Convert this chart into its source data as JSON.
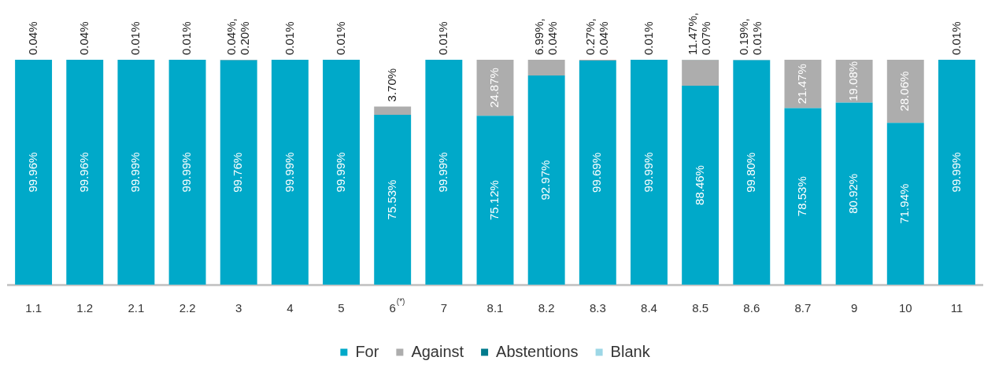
{
  "chart_data": {
    "type": "bar",
    "stacked": true,
    "categories": [
      "1.1",
      "1.2",
      "2.1",
      "2.2",
      "3",
      "4",
      "5",
      "6$^{(*)}$",
      "7",
      "8.1",
      "8.2",
      "8.3",
      "8.4",
      "8.5",
      "8.6",
      "8.7",
      "9",
      "10",
      "11"
    ],
    "series": [
      {
        "name": "For",
        "color": "#00a9c9",
        "values": [
          99.96,
          99.96,
          99.99,
          99.99,
          99.76,
          99.99,
          99.99,
          75.53,
          99.99,
          75.12,
          92.97,
          99.69,
          99.99,
          88.46,
          99.8,
          78.53,
          80.92,
          71.94,
          99.99
        ],
        "value_labels": [
          "99.96%",
          "99.96%",
          "99.99%",
          "99.99%",
          "99.76%",
          "99.99%",
          "99.99%",
          "75.53%",
          "99.99%",
          "75.12%",
          "92.97%",
          "99.69%",
          "99.99%",
          "88.46%",
          "99.80%",
          "78.53%",
          "80.92%",
          "71.94%",
          "99.99%"
        ]
      },
      {
        "name": "Against",
        "color": "#adadad",
        "values": [
          0.04,
          0.04,
          0.01,
          0.01,
          0.04,
          0.01,
          0.01,
          3.7,
          0.01,
          24.87,
          6.99,
          0.27,
          0.01,
          11.47,
          0.19,
          21.47,
          19.08,
          28.06,
          0.01
        ],
        "value_labels": [
          "0.04%",
          "0.04%",
          "0.01%",
          "0.01%",
          "0.04%,",
          "0.01%",
          "0.01%",
          "3.70%",
          "0.01%",
          "24.87%",
          "6.99%,",
          "0.27%,",
          "0.01%",
          "11.47%,",
          "0.19%,",
          "21.47%",
          "19.08%",
          "28.06%",
          "0.01%"
        ]
      },
      {
        "name": "Abstentions",
        "color": "#007a8c",
        "values": [
          null,
          null,
          null,
          null,
          0.2,
          null,
          null,
          null,
          null,
          null,
          0.04,
          0.04,
          null,
          0.07,
          0.01,
          null,
          null,
          null,
          null
        ],
        "value_labels": [
          null,
          null,
          null,
          null,
          "0.20%",
          null,
          null,
          null,
          null,
          null,
          "0.04%",
          "0.04%",
          null,
          "0.07%",
          "0.01%",
          null,
          null,
          null,
          null
        ]
      },
      {
        "name": "Blank",
        "color": "#9dd7e6",
        "values": [
          null,
          null,
          null,
          null,
          null,
          null,
          null,
          null,
          null,
          null,
          null,
          null,
          null,
          null,
          null,
          null,
          null,
          null,
          null
        ]
      }
    ],
    "ylim": [
      0,
      100
    ],
    "tick_labels": "x",
    "legend": "bottom"
  }
}
